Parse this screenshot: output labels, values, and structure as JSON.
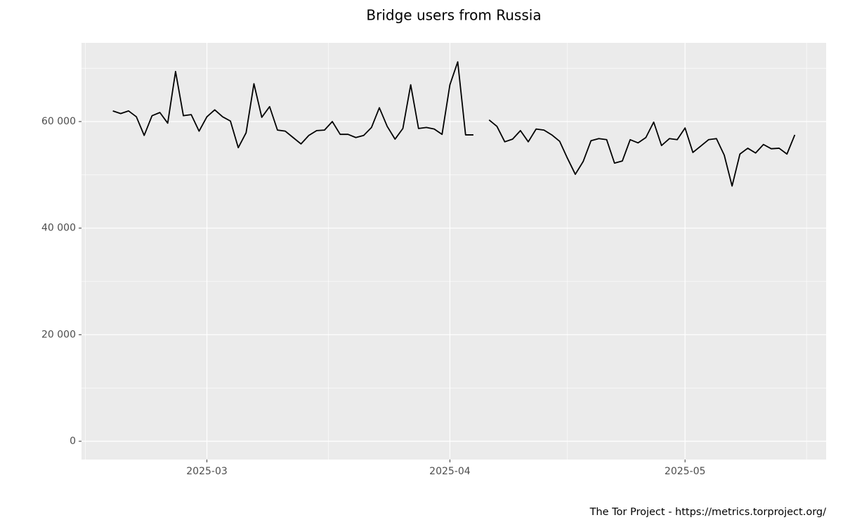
{
  "chart_data": {
    "type": "line",
    "title": "Bridge users from Russia",
    "caption": "The Tor Project - https://metrics.torproject.org/",
    "x": [
      "2025-02-17",
      "2025-02-18",
      "2025-02-19",
      "2025-02-20",
      "2025-02-21",
      "2025-02-22",
      "2025-02-23",
      "2025-02-24",
      "2025-02-25",
      "2025-02-26",
      "2025-02-27",
      "2025-02-28",
      "2025-03-01",
      "2025-03-02",
      "2025-03-03",
      "2025-03-04",
      "2025-03-05",
      "2025-03-06",
      "2025-03-07",
      "2025-03-08",
      "2025-03-09",
      "2025-03-10",
      "2025-03-11",
      "2025-03-12",
      "2025-03-13",
      "2025-03-14",
      "2025-03-15",
      "2025-03-16",
      "2025-03-17",
      "2025-03-18",
      "2025-03-19",
      "2025-03-20",
      "2025-03-21",
      "2025-03-22",
      "2025-03-23",
      "2025-03-24",
      "2025-03-25",
      "2025-03-26",
      "2025-03-27",
      "2025-03-28",
      "2025-03-29",
      "2025-03-30",
      "2025-03-31",
      "2025-04-01",
      "2025-04-02",
      "2025-04-03",
      "2025-04-04",
      "2025-04-05",
      "2025-04-06",
      "2025-04-07",
      "2025-04-08",
      "2025-04-09",
      "2025-04-10",
      "2025-04-11",
      "2025-04-12",
      "2025-04-13",
      "2025-04-14",
      "2025-04-15",
      "2025-04-16",
      "2025-04-17",
      "2025-04-18",
      "2025-04-19",
      "2025-04-20",
      "2025-04-21",
      "2025-04-22",
      "2025-04-23",
      "2025-04-24",
      "2025-04-25",
      "2025-04-26",
      "2025-04-27",
      "2025-04-28",
      "2025-04-29",
      "2025-04-30",
      "2025-05-01",
      "2025-05-02",
      "2025-05-03",
      "2025-05-04",
      "2025-05-05",
      "2025-05-06",
      "2025-05-07",
      "2025-05-08",
      "2025-05-09",
      "2025-05-10",
      "2025-05-11",
      "2025-05-12",
      "2025-05-13",
      "2025-05-14",
      "2025-05-15"
    ],
    "series": [
      {
        "color": "#000000",
        "values": [
          62000,
          61500,
          62000,
          60900,
          57400,
          61100,
          61700,
          59700,
          69400,
          61100,
          61300,
          58200,
          60900,
          62200,
          60900,
          60100,
          55100,
          57900,
          67100,
          60800,
          62800,
          58400,
          58200,
          57000,
          55800,
          57400,
          58300,
          58400,
          60000,
          57600,
          57600,
          57000,
          57400,
          58900,
          62600,
          59100,
          56700,
          58700,
          66900,
          58700,
          58900,
          58600,
          57600,
          66900,
          71200,
          57500,
          57500,
          null,
          60300,
          59100,
          56200,
          56700,
          58300,
          56200,
          58600,
          58400,
          57500,
          56300,
          53100,
          50100,
          52500,
          56400,
          56800,
          56600,
          52200,
          52600,
          56600,
          56000,
          57000,
          59900,
          55500,
          56800,
          56600,
          58800,
          54200,
          55400,
          56600,
          56800,
          53700,
          47900,
          53900,
          55000,
          54100,
          55700,
          54900,
          55000,
          53900,
          57500
        ]
      }
    ],
    "xlim": [
      "2025-02-13",
      "2025-05-19"
    ],
    "xticks": [
      {
        "value": "2025-03-01",
        "label": "2025-03"
      },
      {
        "value": "2025-04-01",
        "label": "2025-04"
      },
      {
        "value": "2025-05-01",
        "label": "2025-05"
      }
    ],
    "ylim": [
      -3430,
      74770
    ],
    "yticks": [
      0,
      {
        "value": 20000,
        "label": "20 000"
      },
      {
        "value": 40000,
        "label": "40 000"
      },
      {
        "value": 60000,
        "label": "60 000"
      }
    ],
    "grid": true,
    "minor_grid": true
  }
}
